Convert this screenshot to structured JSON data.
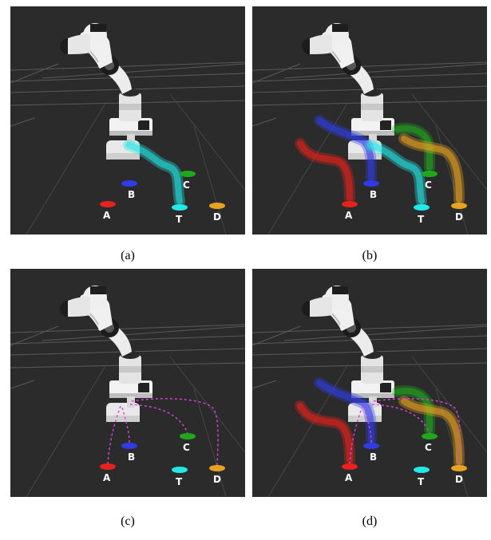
{
  "panels": [
    {
      "id": "a",
      "caption": "(a)",
      "mode": "single"
    },
    {
      "id": "b",
      "caption": "(b)",
      "mode": "multi"
    },
    {
      "id": "c",
      "caption": "(c)",
      "mode": "dashed"
    },
    {
      "id": "d",
      "caption": "(d)",
      "mode": "multi-dashed"
    }
  ],
  "targets": [
    {
      "key": "A",
      "label": "A",
      "color": "#e8211c"
    },
    {
      "key": "B",
      "label": "B",
      "color": "#2f3ce6"
    },
    {
      "key": "C",
      "label": "C",
      "color": "#1fa81c"
    },
    {
      "key": "T",
      "label": "T",
      "color": "#22e8e8"
    },
    {
      "key": "D",
      "label": "D",
      "color": "#e8a420"
    }
  ],
  "dashed_color": "#e040e0"
}
